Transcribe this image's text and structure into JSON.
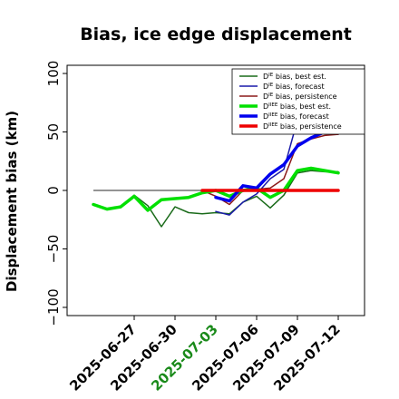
{
  "chart_data": {
    "type": "line",
    "title": "Bias, ice edge displacement",
    "xlabel": "",
    "ylabel": "Displacement bias (km)",
    "ylim": [
      -107,
      107
    ],
    "xlim": [
      "2025-06-24",
      "2025-07-13"
    ],
    "yticks": [
      -100,
      -50,
      0,
      50,
      100
    ],
    "ytick_labels": [
      "−100",
      "−50",
      "0",
      "50",
      "100"
    ],
    "xticks": [
      "2025-06-27",
      "2025-06-30",
      "2025-07-03",
      "2025-07-06",
      "2025-07-09",
      "2025-07-12"
    ],
    "xtick_colors": [
      "#000000",
      "#000000",
      "#1a8a1a",
      "#000000",
      "#000000",
      "#000000"
    ],
    "grid": false,
    "legend_position": "upper right",
    "zero_line": {
      "color": "#000000",
      "value": 0
    },
    "series": [
      {
        "name": "D^IE bias, best est.",
        "color": "#1a6b1a",
        "width": 1.5,
        "x": [
          "2025-06-24",
          "2025-06-25",
          "2025-06-26",
          "2025-06-27",
          "2025-06-28",
          "2025-06-29",
          "2025-06-30",
          "2025-07-01",
          "2025-07-02",
          "2025-07-03",
          "2025-07-04",
          "2025-07-05",
          "2025-07-06",
          "2025-07-07",
          "2025-07-08",
          "2025-07-09",
          "2025-07-10",
          "2025-07-11",
          "2025-07-12"
        ],
        "values": [
          -12,
          -16,
          -14,
          -4,
          -13,
          -31,
          -14,
          -19,
          -20,
          -19,
          -20,
          -10,
          -5,
          -15,
          -4,
          15,
          17,
          16,
          16
        ]
      },
      {
        "name": "D^IE bias, forecast",
        "color": "#1a1aaa",
        "width": 1.5,
        "x": [
          "2025-07-03",
          "2025-07-04",
          "2025-07-05",
          "2025-07-06",
          "2025-07-07",
          "2025-07-08",
          "2025-07-09",
          "2025-07-10",
          "2025-07-11",
          "2025-07-12"
        ],
        "values": [
          -18,
          -21,
          -10,
          -3,
          10,
          18,
          60,
          55,
          50,
          48
        ]
      },
      {
        "name": "D^IE bias, persistence",
        "color": "#8b1a1a",
        "width": 1.5,
        "x": [
          "2025-07-02",
          "2025-07-03",
          "2025-07-04",
          "2025-07-05",
          "2025-07-06",
          "2025-07-07",
          "2025-07-08",
          "2025-07-09",
          "2025-07-10",
          "2025-07-11",
          "2025-07-12"
        ],
        "values": [
          0,
          -5,
          -12,
          0,
          1,
          2,
          10,
          40,
          44,
          47,
          48
        ]
      },
      {
        "name": "D^IIEE bias, best est.",
        "color": "#00e000",
        "width": 3.5,
        "x": [
          "2025-06-24",
          "2025-06-25",
          "2025-06-26",
          "2025-06-27",
          "2025-06-28",
          "2025-06-29",
          "2025-06-30",
          "2025-07-01",
          "2025-07-02",
          "2025-07-03",
          "2025-07-04",
          "2025-07-05",
          "2025-07-06",
          "2025-07-07",
          "2025-07-08",
          "2025-07-09",
          "2025-07-10",
          "2025-07-11",
          "2025-07-12"
        ],
        "values": [
          -12,
          -16,
          -14,
          -5,
          -17,
          -8,
          -7,
          -6,
          -2,
          0,
          -5,
          0,
          2,
          -6,
          0,
          17,
          19,
          17,
          15
        ]
      },
      {
        "name": "D^IIEE bias, forecast",
        "color": "#0000ee",
        "width": 3.5,
        "x": [
          "2025-07-03",
          "2025-07-04",
          "2025-07-05",
          "2025-07-06",
          "2025-07-07",
          "2025-07-08",
          "2025-07-09",
          "2025-07-10",
          "2025-07-11",
          "2025-07-12"
        ],
        "values": [
          -6,
          -9,
          4,
          2,
          14,
          22,
          38,
          45,
          50,
          53
        ]
      },
      {
        "name": "D^IIEE bias, persistence",
        "color": "#ee0000",
        "width": 3.5,
        "x": [
          "2025-07-02",
          "2025-07-12"
        ],
        "values": [
          0,
          0
        ]
      }
    ],
    "legend": [
      {
        "base": "D",
        "sup": "IE",
        "rest": " bias, best est.",
        "color": "#1a6b1a",
        "width": 1.5
      },
      {
        "base": "D",
        "sup": "IE",
        "rest": " bias, forecast",
        "color": "#1a1aaa",
        "width": 1.5
      },
      {
        "base": "D",
        "sup": "IE",
        "rest": " bias, persistence",
        "color": "#8b1a1a",
        "width": 1.5
      },
      {
        "base": "D",
        "sup": "IIEE",
        "rest": " bias, best est.",
        "color": "#00e000",
        "width": 3.5
      },
      {
        "base": "D",
        "sup": "IIEE",
        "rest": " bias, forecast",
        "color": "#0000ee",
        "width": 3.5
      },
      {
        "base": "D",
        "sup": "IIEE",
        "rest": " bias, persistence",
        "color": "#ee0000",
        "width": 3.5
      }
    ]
  }
}
